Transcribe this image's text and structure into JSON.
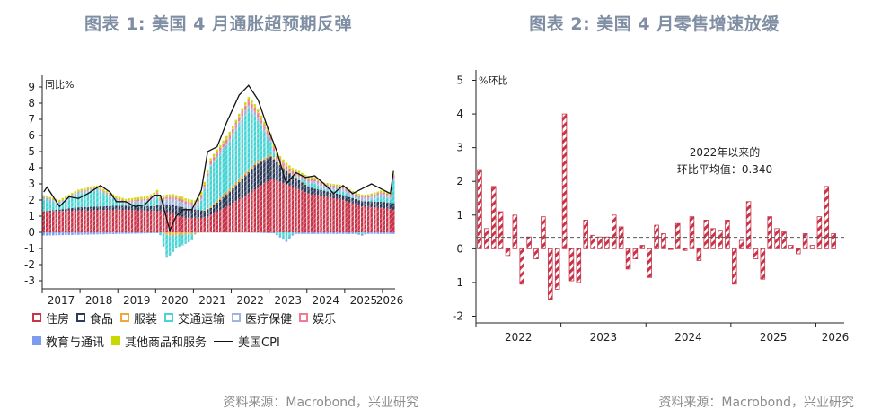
{
  "left": {
    "title": "图表 1: 美国 4 月通胀超预期反弹",
    "source": "资料来源：Macrobond，兴业研究",
    "unit_label": "同比%",
    "legend": [
      {
        "name": "住房",
        "color": "#c8354a",
        "style": "hatch"
      },
      {
        "name": "食品",
        "color": "#2d3b5a",
        "style": "hatch"
      },
      {
        "name": "服装",
        "color": "#f0a63a",
        "style": "hatch"
      },
      {
        "name": "交通运输",
        "color": "#48d4d4",
        "style": "hatch"
      },
      {
        "name": "医疗保健",
        "color": "#9fb6dc",
        "style": "hatch"
      },
      {
        "name": "娱乐",
        "color": "#f07a94",
        "style": "hatch"
      },
      {
        "name": "教育与通讯",
        "color": "#7b9cf0",
        "style": "solid"
      },
      {
        "name": "其他商品和服务",
        "color": "#c9d900",
        "style": "solid"
      },
      {
        "name": "美国CPI",
        "color": "#111111",
        "style": "line"
      }
    ],
    "chart_data": {
      "type": "bar",
      "stacked": true,
      "frequency": "monthly",
      "x_start": "2017-01",
      "x_end": "2026-04",
      "x_ticks": [
        "2017",
        "2018",
        "2019",
        "2020",
        "2021",
        "2022",
        "2023",
        "2024",
        "2025",
        "2026"
      ],
      "ylim": [
        -3.5,
        9.5
      ],
      "y_ticks": [
        -3,
        -2,
        -1,
        0,
        1,
        2,
        3,
        4,
        5,
        6,
        7,
        8,
        9
      ],
      "series": [
        {
          "name": "住房",
          "kind": "bar",
          "anchors": [
            [
              "2017-01",
              1.3
            ],
            [
              "2019-01",
              1.4
            ],
            [
              "2020-03",
              1.3
            ],
            [
              "2020-10",
              0.9
            ],
            [
              "2021-04",
              0.9
            ],
            [
              "2021-12",
              1.7
            ],
            [
              "2022-06",
              2.4
            ],
            [
              "2023-01",
              3.3
            ],
            [
              "2023-06",
              3.0
            ],
            [
              "2024-01",
              2.4
            ],
            [
              "2024-12",
              2.0
            ],
            [
              "2025-06",
              1.6
            ],
            [
              "2026-01",
              1.5
            ],
            [
              "2026-04",
              1.4
            ]
          ]
        },
        {
          "name": "食品",
          "kind": "bar",
          "anchors": [
            [
              "2017-01",
              0.0
            ],
            [
              "2017-12",
              0.2
            ],
            [
              "2019-12",
              0.3
            ],
            [
              "2020-04",
              0.5
            ],
            [
              "2020-09",
              0.6
            ],
            [
              "2021-06",
              0.4
            ],
            [
              "2022-01",
              0.9
            ],
            [
              "2022-08",
              1.5
            ],
            [
              "2023-01",
              1.4
            ],
            [
              "2023-06",
              0.8
            ],
            [
              "2024-01",
              0.4
            ],
            [
              "2025-01",
              0.3
            ],
            [
              "2026-04",
              0.4
            ]
          ]
        },
        {
          "name": "服装",
          "kind": "bar",
          "anchors": [
            [
              "2017-01",
              0.0
            ],
            [
              "2020-02",
              0.0
            ],
            [
              "2020-05",
              -0.2
            ],
            [
              "2020-12",
              -0.1
            ],
            [
              "2021-06",
              0.1
            ],
            [
              "2022-03",
              0.2
            ],
            [
              "2022-12",
              0.1
            ],
            [
              "2023-06",
              0.1
            ],
            [
              "2024-01",
              0.0
            ],
            [
              "2026-04",
              0.0
            ]
          ]
        },
        {
          "name": "交通运输",
          "kind": "bar",
          "anchors": [
            [
              "2017-01",
              0.7
            ],
            [
              "2017-06",
              0.3
            ],
            [
              "2017-12",
              0.8
            ],
            [
              "2018-06",
              1.0
            ],
            [
              "2018-12",
              0.3
            ],
            [
              "2019-03",
              0.1
            ],
            [
              "2019-10",
              0.2
            ],
            [
              "2020-01",
              0.5
            ],
            [
              "2020-04",
              -1.4
            ],
            [
              "2020-07",
              -0.8
            ],
            [
              "2020-12",
              -0.4
            ],
            [
              "2021-03",
              0.6
            ],
            [
              "2021-06",
              2.5
            ],
            [
              "2021-12",
              2.9
            ],
            [
              "2022-06",
              3.7
            ],
            [
              "2022-09",
              2.5
            ],
            [
              "2022-12",
              1.2
            ],
            [
              "2023-03",
              -0.1
            ],
            [
              "2023-06",
              -0.5
            ],
            [
              "2023-09",
              0.1
            ],
            [
              "2024-03",
              0.3
            ],
            [
              "2024-06",
              0.1
            ],
            [
              "2024-12",
              0.2
            ],
            [
              "2025-06",
              -0.1
            ],
            [
              "2025-12",
              0.3
            ],
            [
              "2026-03",
              0.2
            ],
            [
              "2026-04",
              1.4
            ]
          ]
        },
        {
          "name": "医疗保健",
          "kind": "bar",
          "anchors": [
            [
              "2017-01",
              0.2
            ],
            [
              "2019-01",
              0.1
            ],
            [
              "2020-01",
              0.2
            ],
            [
              "2020-06",
              0.4
            ],
            [
              "2021-06",
              0.1
            ],
            [
              "2022-06",
              0.3
            ],
            [
              "2023-06",
              0.0
            ],
            [
              "2024-06",
              0.2
            ],
            [
              "2026-04",
              0.2
            ]
          ]
        },
        {
          "name": "娱乐",
          "kind": "bar",
          "anchors": [
            [
              "2017-01",
              0.0
            ],
            [
              "2020-01",
              0.1
            ],
            [
              "2021-06",
              0.2
            ],
            [
              "2022-06",
              0.3
            ],
            [
              "2023-06",
              0.2
            ],
            [
              "2024-06",
              0.1
            ],
            [
              "2026-04",
              0.1
            ]
          ]
        },
        {
          "name": "教育与通讯",
          "kind": "bar",
          "anchors": [
            [
              "2017-01",
              -0.2
            ],
            [
              "2019-01",
              -0.1
            ],
            [
              "2021-01",
              0.0
            ],
            [
              "2022-06",
              0.0
            ],
            [
              "2023-06",
              -0.1
            ],
            [
              "2026-04",
              -0.1
            ]
          ]
        },
        {
          "name": "其他商品和服务",
          "kind": "bar",
          "anchors": [
            [
              "2017-01",
              0.1
            ],
            [
              "2022-06",
              0.2
            ],
            [
              "2023-06",
              0.2
            ],
            [
              "2024-06",
              0.1
            ],
            [
              "2026-04",
              0.1
            ]
          ]
        },
        {
          "name": "美国CPI",
          "kind": "line",
          "anchors": [
            [
              "2017-01",
              2.5
            ],
            [
              "2017-02",
              2.8
            ],
            [
              "2017-06",
              1.6
            ],
            [
              "2017-09",
              2.2
            ],
            [
              "2017-12",
              2.1
            ],
            [
              "2018-03",
              2.4
            ],
            [
              "2018-07",
              2.9
            ],
            [
              "2018-10",
              2.5
            ],
            [
              "2018-12",
              1.9
            ],
            [
              "2019-03",
              1.9
            ],
            [
              "2019-06",
              1.6
            ],
            [
              "2019-09",
              1.7
            ],
            [
              "2019-12",
              2.3
            ],
            [
              "2020-02",
              2.3
            ],
            [
              "2020-05",
              0.1
            ],
            [
              "2020-07",
              1.0
            ],
            [
              "2020-09",
              1.4
            ],
            [
              "2020-12",
              1.4
            ],
            [
              "2021-03",
              2.6
            ],
            [
              "2021-05",
              5.0
            ],
            [
              "2021-08",
              5.3
            ],
            [
              "2021-11",
              6.8
            ],
            [
              "2022-03",
              8.5
            ],
            [
              "2022-06",
              9.1
            ],
            [
              "2022-09",
              8.2
            ],
            [
              "2022-12",
              6.5
            ],
            [
              "2023-03",
              5.0
            ],
            [
              "2023-06",
              3.0
            ],
            [
              "2023-09",
              3.7
            ],
            [
              "2023-12",
              3.4
            ],
            [
              "2024-03",
              3.5
            ],
            [
              "2024-06",
              3.0
            ],
            [
              "2024-09",
              2.4
            ],
            [
              "2024-12",
              2.9
            ],
            [
              "2025-03",
              2.4
            ],
            [
              "2025-06",
              2.7
            ],
            [
              "2025-09",
              3.0
            ],
            [
              "2025-12",
              2.7
            ],
            [
              "2026-03",
              2.4
            ],
            [
              "2026-04",
              3.8
            ]
          ]
        }
      ]
    }
  },
  "right": {
    "title": "图表 2: 美国 4 月零售增速放缓",
    "source": "资料来源：Macrobond，兴业研究",
    "unit_label": "%环比",
    "annotation": [
      "2022年以来的",
      "环比平均值：0.340"
    ],
    "chart_data": {
      "type": "bar",
      "frequency": "monthly",
      "x_start": "2022-01",
      "x_end": "2026-04",
      "x_ticks": [
        "2022",
        "2023",
        "2024",
        "2025",
        "2026"
      ],
      "ylim": [
        -2.2,
        5.2
      ],
      "y_ticks": [
        -2,
        -1,
        0,
        1,
        2,
        3,
        4,
        5
      ],
      "mean_line": 0.34,
      "color": "#c8354a",
      "values": [
        2.35,
        0.6,
        1.85,
        1.1,
        -0.2,
        1.0,
        -1.05,
        0.35,
        -0.3,
        0.95,
        -1.5,
        -1.2,
        4.0,
        -0.95,
        -1.0,
        0.85,
        0.4,
        0.35,
        0.35,
        1.0,
        0.65,
        -0.6,
        -0.3,
        0.1,
        -0.85,
        0.7,
        0.45,
        0.0,
        0.75,
        -0.05,
        0.95,
        -0.35,
        0.85,
        0.6,
        0.55,
        0.85,
        -1.05,
        0.25,
        1.4,
        -0.3,
        -0.9,
        0.95,
        0.6,
        0.5,
        0.1,
        -0.15,
        0.45,
        0.1,
        0.95,
        1.85,
        0.45
      ]
    }
  }
}
